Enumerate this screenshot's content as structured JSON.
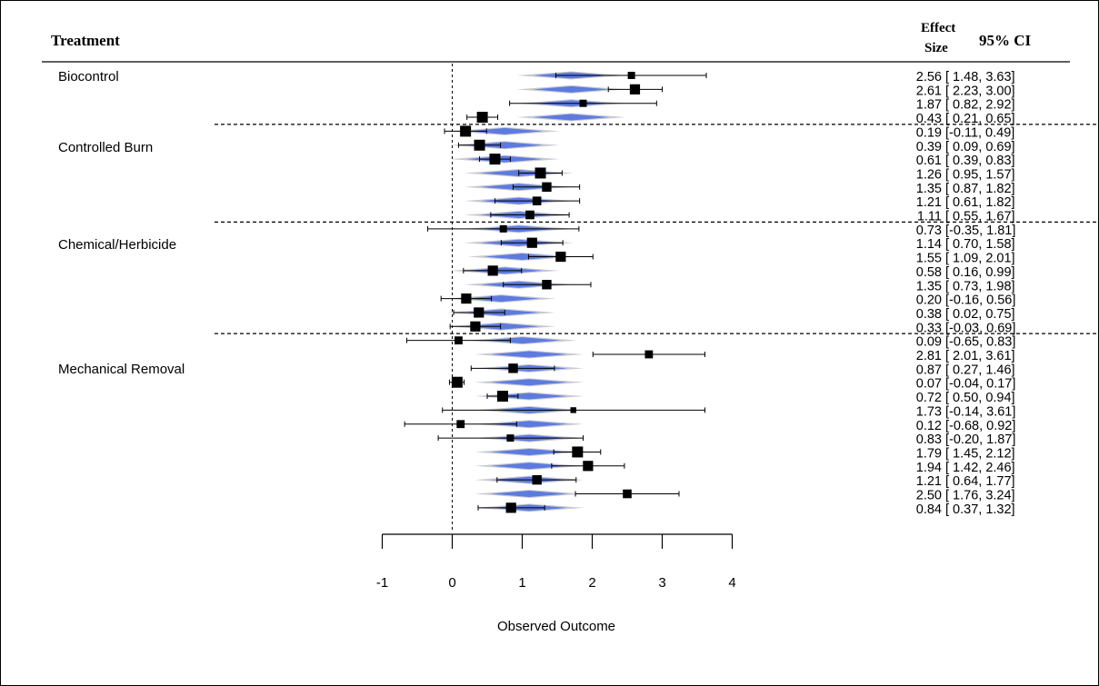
{
  "header": {
    "treatment": "Treatment",
    "effect_line1": "Effect",
    "effect_line2": "Size",
    "ci": "95% CI"
  },
  "groups": [
    {
      "name": "Biocontrol",
      "count": 4
    },
    {
      "name": "Controlled Burn",
      "count": 7
    },
    {
      "name": "Chemical/Herbicide",
      "count": 8
    },
    {
      "name": "Mechanical Removal",
      "count": 13
    }
  ],
  "chart_data": {
    "type": "forest",
    "xlabel": "Observed Outcome",
    "xlim": [
      -1,
      4
    ],
    "xticks": [
      -1,
      0,
      1,
      2,
      3,
      4
    ],
    "reference_line": 0,
    "studies": [
      {
        "group": "Biocontrol",
        "es": 2.56,
        "lo": 1.48,
        "hi": 3.63,
        "es_text": "2.56",
        "ci_text": "[ 1.48, 3.63]",
        "pred": 1.7,
        "weight": 0.5
      },
      {
        "group": "Biocontrol",
        "es": 2.61,
        "lo": 2.23,
        "hi": 3.0,
        "es_text": "2.61",
        "ci_text": "[ 2.23, 3.00]",
        "pred": 1.7,
        "weight": 0.9
      },
      {
        "group": "Biocontrol",
        "es": 1.87,
        "lo": 0.82,
        "hi": 2.92,
        "es_text": "1.87",
        "ci_text": "[ 0.82, 2.92]",
        "pred": 1.7,
        "weight": 0.5
      },
      {
        "group": "Biocontrol",
        "es": 0.43,
        "lo": 0.21,
        "hi": 0.65,
        "es_text": "0.43",
        "ci_text": "[ 0.21, 0.65]",
        "pred": 1.7,
        "weight": 1.0
      },
      {
        "group": "Controlled Burn",
        "es": 0.19,
        "lo": -0.11,
        "hi": 0.49,
        "es_text": "0.19",
        "ci_text": "[-0.11, 0.49]",
        "pred": 0.75,
        "weight": 1.0
      },
      {
        "group": "Controlled Burn",
        "es": 0.39,
        "lo": 0.09,
        "hi": 0.69,
        "es_text": "0.39",
        "ci_text": "[ 0.09, 0.69]",
        "pred": 0.75,
        "weight": 1.0
      },
      {
        "group": "Controlled Burn",
        "es": 0.61,
        "lo": 0.39,
        "hi": 0.83,
        "es_text": "0.61",
        "ci_text": "[ 0.39, 0.83]",
        "pred": 0.75,
        "weight": 1.0
      },
      {
        "group": "Controlled Burn",
        "es": 1.26,
        "lo": 0.95,
        "hi": 1.57,
        "es_text": "1.26",
        "ci_text": "[ 0.95, 1.57]",
        "pred": 0.95,
        "weight": 1.0
      },
      {
        "group": "Controlled Burn",
        "es": 1.35,
        "lo": 0.87,
        "hi": 1.82,
        "es_text": "1.35",
        "ci_text": "[ 0.87, 1.82]",
        "pred": 0.95,
        "weight": 0.8
      },
      {
        "group": "Controlled Burn",
        "es": 1.21,
        "lo": 0.61,
        "hi": 1.82,
        "es_text": "1.21",
        "ci_text": "[ 0.61, 1.82]",
        "pred": 0.95,
        "weight": 0.7
      },
      {
        "group": "Controlled Burn",
        "es": 1.11,
        "lo": 0.55,
        "hi": 1.67,
        "es_text": "1.11",
        "ci_text": "[ 0.55, 1.67]",
        "pred": 0.95,
        "weight": 0.7
      },
      {
        "group": "Chemical/Herbicide",
        "es": 0.73,
        "lo": -0.35,
        "hi": 1.81,
        "es_text": "0.73",
        "ci_text": "[-0.35, 1.81]",
        "pred": 0.95,
        "weight": 0.5
      },
      {
        "group": "Chemical/Herbicide",
        "es": 1.14,
        "lo": 0.7,
        "hi": 1.58,
        "es_text": "1.14",
        "ci_text": "[ 0.70, 1.58]",
        "pred": 0.95,
        "weight": 0.9
      },
      {
        "group": "Chemical/Herbicide",
        "es": 1.55,
        "lo": 1.09,
        "hi": 2.01,
        "es_text": "1.55",
        "ci_text": "[ 1.09, 2.01]",
        "pred": 1.0,
        "weight": 0.9
      },
      {
        "group": "Chemical/Herbicide",
        "es": 0.58,
        "lo": 0.16,
        "hi": 0.99,
        "es_text": "0.58",
        "ci_text": "[ 0.16, 0.99]",
        "pred": 0.75,
        "weight": 0.9
      },
      {
        "group": "Chemical/Herbicide",
        "es": 1.35,
        "lo": 0.73,
        "hi": 1.98,
        "es_text": "1.35",
        "ci_text": "[ 0.73, 1.98]",
        "pred": 0.95,
        "weight": 0.8
      },
      {
        "group": "Chemical/Herbicide",
        "es": 0.2,
        "lo": -0.16,
        "hi": 0.56,
        "es_text": "0.20",
        "ci_text": "[-0.16, 0.56]",
        "pred": 0.7,
        "weight": 0.9
      },
      {
        "group": "Chemical/Herbicide",
        "es": 0.38,
        "lo": 0.02,
        "hi": 0.75,
        "es_text": "0.38",
        "ci_text": "[ 0.02, 0.75]",
        "pred": 0.7,
        "weight": 0.9
      },
      {
        "group": "Chemical/Herbicide",
        "es": 0.33,
        "lo": -0.03,
        "hi": 0.69,
        "es_text": "0.33",
        "ci_text": "[-0.03, 0.69]",
        "pred": 0.7,
        "weight": 0.9
      },
      {
        "group": "Mechanical Removal",
        "es": 0.09,
        "lo": -0.65,
        "hi": 0.83,
        "es_text": "0.09",
        "ci_text": "[-0.65, 0.83]",
        "pred": 1.0,
        "weight": 0.6
      },
      {
        "group": "Mechanical Removal",
        "es": 2.81,
        "lo": 2.01,
        "hi": 3.61,
        "es_text": "2.81",
        "ci_text": "[ 2.01, 3.61]",
        "pred": 1.1,
        "weight": 0.6
      },
      {
        "group": "Mechanical Removal",
        "es": 0.87,
        "lo": 0.27,
        "hi": 1.46,
        "es_text": "0.87",
        "ci_text": "[ 0.27, 1.46]",
        "pred": 1.1,
        "weight": 0.8
      },
      {
        "group": "Mechanical Removal",
        "es": 0.07,
        "lo": -0.04,
        "hi": 0.17,
        "es_text": "0.07",
        "ci_text": "[-0.04, 0.17]",
        "pred": 1.1,
        "weight": 1.0
      },
      {
        "group": "Mechanical Removal",
        "es": 0.72,
        "lo": 0.5,
        "hi": 0.94,
        "es_text": "0.72",
        "ci_text": "[ 0.50, 0.94]",
        "pred": 1.1,
        "weight": 1.0
      },
      {
        "group": "Mechanical Removal",
        "es": 1.73,
        "lo": -0.14,
        "hi": 3.61,
        "es_text": "1.73",
        "ci_text": "[-0.14, 3.61]",
        "pred": 1.1,
        "weight": 0.3
      },
      {
        "group": "Mechanical Removal",
        "es": 0.12,
        "lo": -0.68,
        "hi": 0.92,
        "es_text": "0.12",
        "ci_text": "[-0.68, 0.92]",
        "pred": 1.1,
        "weight": 0.6
      },
      {
        "group": "Mechanical Removal",
        "es": 0.83,
        "lo": -0.2,
        "hi": 1.87,
        "es_text": "0.83",
        "ci_text": "[-0.20, 1.87]",
        "pred": 1.1,
        "weight": 0.5
      },
      {
        "group": "Mechanical Removal",
        "es": 1.79,
        "lo": 1.45,
        "hi": 2.12,
        "es_text": "1.79",
        "ci_text": "[ 1.45, 2.12]",
        "pred": 1.1,
        "weight": 1.0
      },
      {
        "group": "Mechanical Removal",
        "es": 1.94,
        "lo": 1.42,
        "hi": 2.46,
        "es_text": "1.94",
        "ci_text": "[ 1.42, 2.46]",
        "pred": 1.1,
        "weight": 0.9
      },
      {
        "group": "Mechanical Removal",
        "es": 1.21,
        "lo": 0.64,
        "hi": 1.77,
        "es_text": "1.21",
        "ci_text": "[ 0.64, 1.77]",
        "pred": 1.1,
        "weight": 0.8
      },
      {
        "group": "Mechanical Removal",
        "es": 2.5,
        "lo": 1.76,
        "hi": 3.24,
        "es_text": "2.50",
        "ci_text": "[ 1.76, 3.24]",
        "pred": 1.1,
        "weight": 0.7
      },
      {
        "group": "Mechanical Removal",
        "es": 0.84,
        "lo": 0.37,
        "hi": 1.32,
        "es_text": "0.84",
        "ci_text": "[ 0.37, 1.32]",
        "pred": 1.1,
        "weight": 0.9
      }
    ]
  },
  "colors": {
    "diamond_outer": "#c9c9d4",
    "diamond_inner": "#4a6de0",
    "point": "#000000",
    "line": "#000000"
  }
}
